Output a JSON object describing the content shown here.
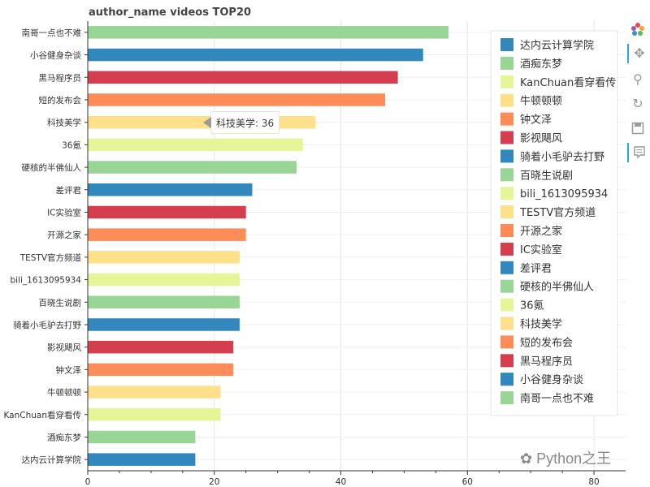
{
  "chart_data": {
    "type": "bar",
    "orientation": "horizontal",
    "title": "author_name videos TOP20",
    "categories": [
      "南哥一点也不难",
      "小谷健身杂谈",
      "黑马程序员",
      "短的发布会",
      "科技美学",
      "36氪",
      "硬核的半佛仙人",
      "差评君",
      "IC实验室",
      "开源之家",
      "TESTV官方频道",
      "bili_1613095934",
      "百晓生说剧",
      "骑着小毛驴去打野",
      "影视飓风",
      "钟文泽",
      "牛顿顿顿",
      "KanChuan看穿看传",
      "酒痴东梦",
      "达内云计算学院"
    ],
    "values": [
      57,
      53,
      49,
      47,
      36,
      34,
      33,
      26,
      25,
      25,
      24,
      24,
      24,
      24,
      23,
      23,
      21,
      21,
      17,
      17
    ],
    "bar_colors": [
      "#99d594",
      "#3288bd",
      "#d53e4f",
      "#fc8d59",
      "#fee08b",
      "#e6f598",
      "#99d594",
      "#3288bd",
      "#d53e4f",
      "#fc8d59",
      "#fee08b",
      "#e6f598",
      "#99d594",
      "#3288bd",
      "#d53e4f",
      "#fc8d59",
      "#fee08b",
      "#e6f598",
      "#99d594",
      "#3288bd"
    ],
    "xlim": [
      0,
      85
    ],
    "xticks": [
      0,
      20,
      40,
      60,
      80
    ],
    "grid": true,
    "legend": {
      "position": "top-right",
      "entries": [
        "达内云计算学院",
        "酒痴东梦",
        "KanChuan看穿看传",
        "牛顿顿顿",
        "钟文泽",
        "影视飓风",
        "骑着小毛驴去打野",
        "百晓生说剧",
        "bili_1613095934",
        "TESTV官方频道",
        "开源之家",
        "IC实验室",
        "差评君",
        "硬核的半佛仙人",
        "36氪",
        "科技美学",
        "短的发布会",
        "黑马程序员",
        "小谷健身杂谈",
        "南哥一点也不难"
      ],
      "colors": [
        "#3288bd",
        "#99d594",
        "#e6f598",
        "#fee08b",
        "#fc8d59",
        "#d53e4f",
        "#3288bd",
        "#99d594",
        "#e6f598",
        "#fee08b",
        "#fc8d59",
        "#d53e4f",
        "#3288bd",
        "#99d594",
        "#e6f598",
        "#fee08b",
        "#fc8d59",
        "#d53e4f",
        "#3288bd",
        "#99d594"
      ]
    },
    "hover_tooltip": {
      "category": "科技美学",
      "value": 36,
      "text": "科技美学: 36"
    }
  },
  "toolbar": {
    "icons": [
      "bokeh-logo-icon",
      "pan-icon",
      "wheel-zoom-icon",
      "reset-icon",
      "save-icon",
      "hover-icon"
    ]
  },
  "watermark": {
    "text": "Python之王"
  }
}
